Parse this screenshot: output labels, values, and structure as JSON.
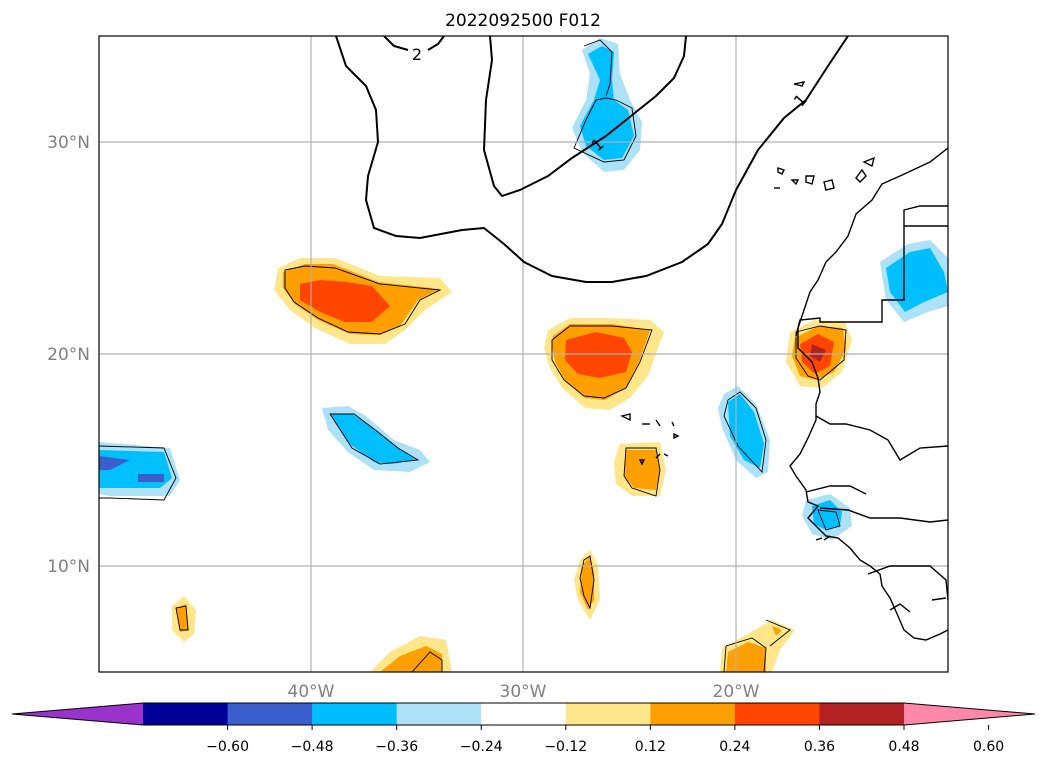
{
  "title": "2022092500 F012",
  "map": {
    "lat_labels": [
      "30°N",
      "20°N",
      "10°N"
    ],
    "lon_labels": [
      "40°W",
      "30°W",
      "20°W"
    ],
    "extent": {
      "lon": [
        -50,
        -10
      ],
      "lat": [
        5,
        35
      ]
    },
    "gridlines": true,
    "contour_labels": [
      "2",
      "1",
      "1"
    ]
  },
  "colorbar": {
    "ticks": [
      "−0.60",
      "−0.48",
      "−0.36",
      "−0.24",
      "−0.12",
      "0.12",
      "0.24",
      "0.36",
      "0.48",
      "0.60"
    ],
    "colors": [
      "#9933cc",
      "#000099",
      "#3a5fcd",
      "#00bfff",
      "#ace1f8",
      "#ffffff",
      "#ffe68a",
      "#ffa000",
      "#ff4500",
      "#b22222",
      "#ff88aa"
    ],
    "extend": "both"
  },
  "colors": {
    "light_yellow": "#ffe68a",
    "orange": "#ffa000",
    "red_orange": "#ff4500",
    "light_blue": "#ace1f8",
    "sky_blue": "#00bfff",
    "royal_blue": "#3a5fcd",
    "purple": "#9933cc",
    "grid": "#b0b0b0"
  }
}
